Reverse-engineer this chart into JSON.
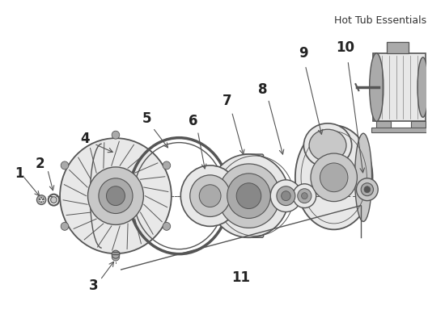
{
  "watermark": "Hot Tub Essentials",
  "bg_color": "#ffffff",
  "lc": "#555555",
  "fc_light": "#e8e8e8",
  "fc_mid": "#c8c8c8",
  "fc_dark": "#aaaaaa",
  "fc_darker": "#888888",
  "figsize": [
    5.5,
    3.89
  ],
  "dpi": 100
}
